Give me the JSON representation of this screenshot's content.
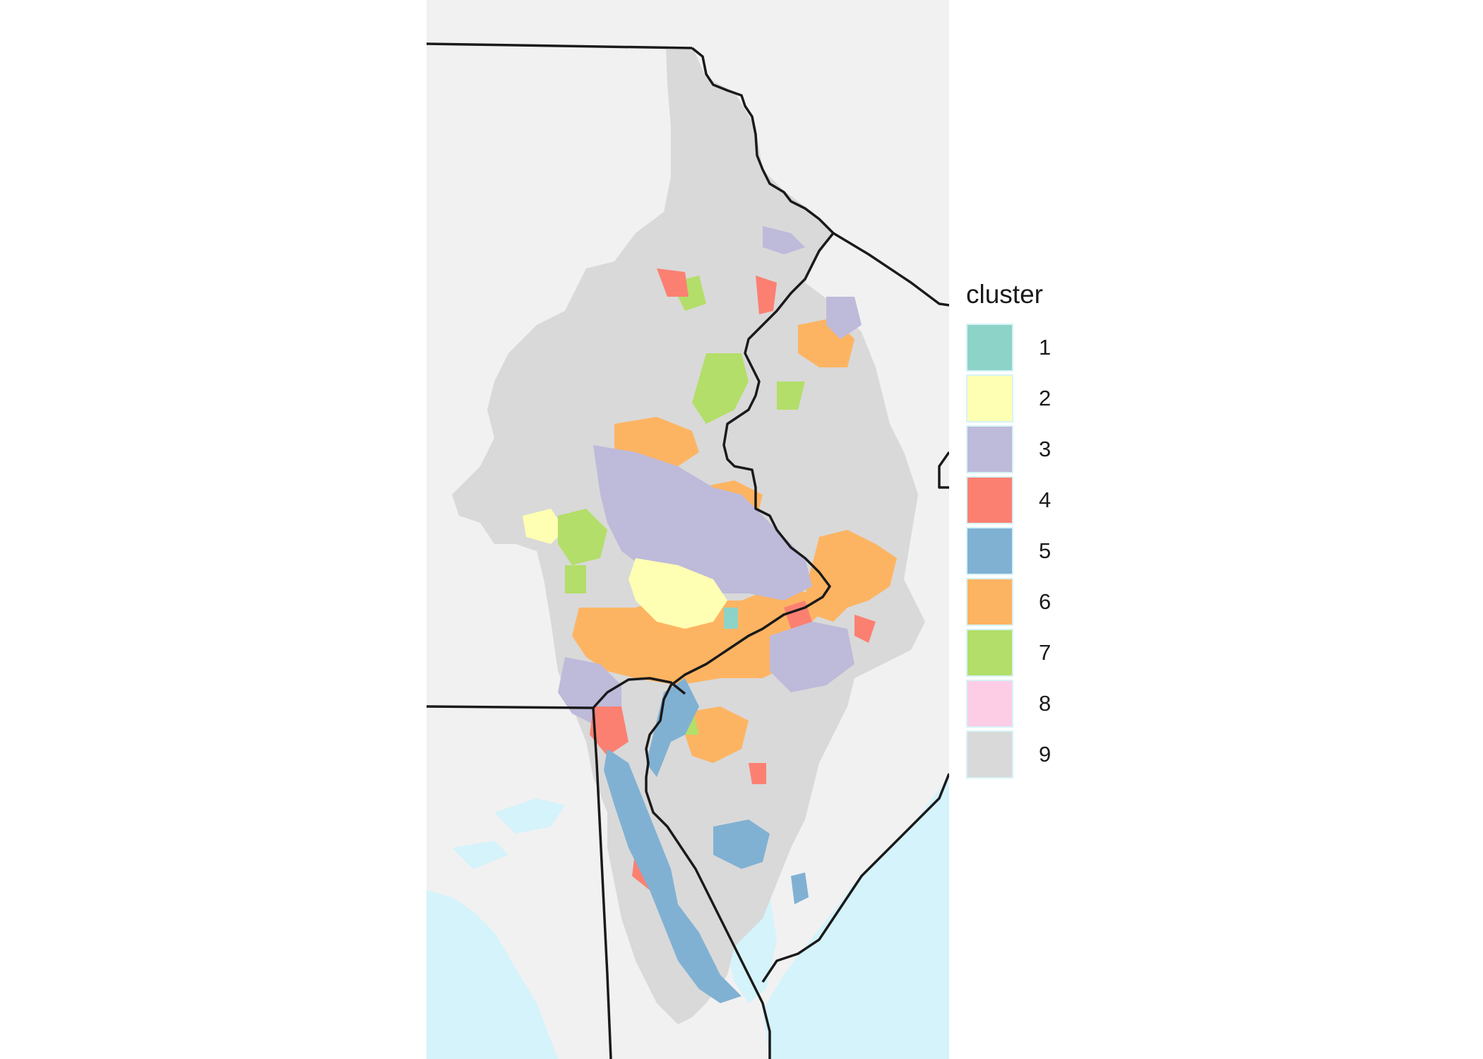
{
  "map": {
    "water_color": "#d4f3fb",
    "land_color": "#f1f1f1",
    "no_data_color": "#d9d9d9",
    "boundary_color": "#1a1a1a"
  },
  "legend": {
    "title": "cluster",
    "items": [
      {
        "label": "1",
        "color": "#8dd3c7"
      },
      {
        "label": "2",
        "color": "#ffffb3"
      },
      {
        "label": "3",
        "color": "#bebada"
      },
      {
        "label": "4",
        "color": "#fb8072"
      },
      {
        "label": "5",
        "color": "#80b1d3"
      },
      {
        "label": "6",
        "color": "#fdb462"
      },
      {
        "label": "7",
        "color": "#b3de69"
      },
      {
        "label": "8",
        "color": "#fccde5"
      },
      {
        "label": "9",
        "color": "#d9d9d9"
      }
    ]
  }
}
